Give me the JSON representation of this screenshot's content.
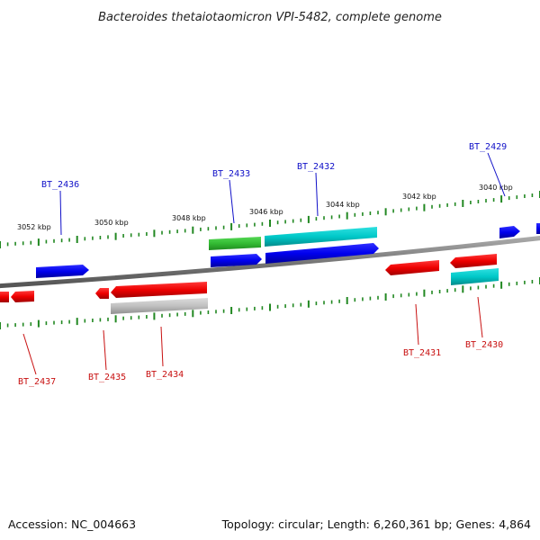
{
  "title": "Bacteroides thetaiotaomicron VPI-5482, complete genome",
  "footer": {
    "accession": "Accession: NC_004663",
    "summary": "Topology: circular; Length: 6,260,361 bp; Genes: 4,864"
  },
  "scale_labels": [
    "3052 kbp",
    "3050 kbp",
    "3048 kbp",
    "3046 kbp",
    "3044 kbp",
    "3042 kbp",
    "3040 kbp"
  ],
  "gene_labels_top": [
    "BT_2436",
    "BT_2433",
    "BT_2432",
    "BT_2429"
  ],
  "gene_labels_bottom": [
    "BT_2437",
    "BT_2435",
    "BT_2434",
    "BT_2431",
    "BT_2430"
  ],
  "colors": {
    "forward_cds": "#0000ee",
    "reverse_cds": "#ee0000",
    "rna_teal": "#00c8c8",
    "rna_green": "#33bb33",
    "pseudo_gray": "#c0c0c0",
    "backbone": "#888888",
    "ticks": "#228822",
    "label_top": "#1010c8",
    "label_bottom": "#c81010"
  }
}
